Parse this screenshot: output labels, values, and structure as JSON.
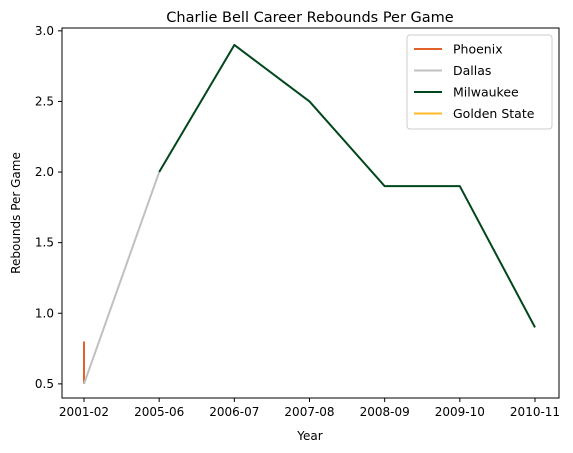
{
  "chart_data": {
    "type": "line",
    "title": "Charlie Bell  Career Rebounds Per Game",
    "xlabel": "Year",
    "ylabel": "Rebounds Per Game",
    "categories": [
      "2001-02",
      "2005-06",
      "2006-07",
      "2007-08",
      "2008-09",
      "2009-10",
      "2010-11"
    ],
    "ylim": [
      0.4,
      3.02
    ],
    "yticks": [
      "0.5",
      "1.0",
      "1.5",
      "2.0",
      "2.5",
      "3.0"
    ],
    "ytick_values": [
      0.5,
      1.0,
      1.5,
      2.0,
      2.5,
      3.0
    ],
    "grid": false,
    "legend_position": "top-right",
    "series": [
      {
        "name": "Phoenix",
        "color": "#e2622a",
        "points": [
          [
            "2001-02",
            0.8
          ],
          [
            "2001-02",
            0.5
          ]
        ]
      },
      {
        "name": "Dallas",
        "color": "#c0c0c0",
        "points": [
          [
            "2001-02",
            0.5
          ],
          [
            "2005-06",
            2.0
          ]
        ]
      },
      {
        "name": "Milwaukee",
        "color": "#00471b",
        "points": [
          [
            "2005-06",
            2.0
          ],
          [
            "2006-07",
            2.9
          ],
          [
            "2007-08",
            2.5
          ],
          [
            "2008-09",
            1.9
          ],
          [
            "2009-10",
            1.9
          ],
          [
            "2010-11",
            0.9
          ]
        ]
      },
      {
        "name": "Golden State",
        "color": "#fdb927",
        "points": [
          [
            "2010-11",
            0.9
          ],
          [
            "2010-11",
            0.9
          ]
        ]
      }
    ]
  }
}
